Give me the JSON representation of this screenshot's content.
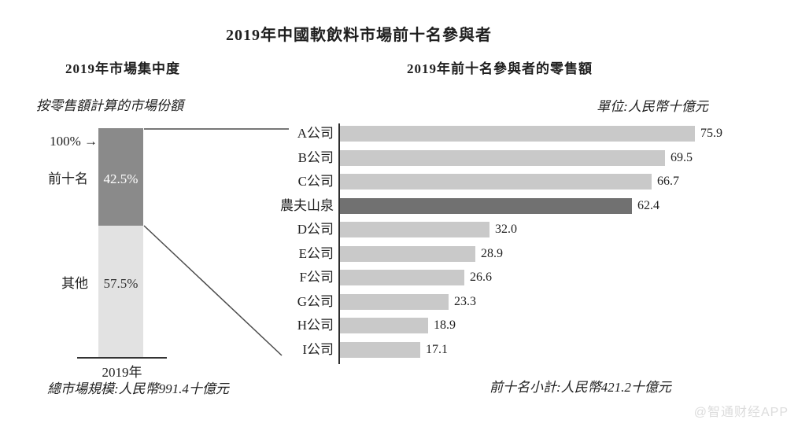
{
  "title": "2019年中國軟飲料市場前十名參與者",
  "watermark": "@智通财经APP",
  "left_panel": {
    "subtitle": "2019年市場集中度",
    "note": "按零售額計算的市場份額",
    "pointer_label": "100%",
    "arrow_glyph": "→",
    "segments": [
      {
        "label": "前十名",
        "value_label": "42.5%",
        "value": 42.5
      },
      {
        "label": "其他",
        "value_label": "57.5%",
        "value": 57.5
      }
    ],
    "axis_label": "2019年",
    "footnote": "總市場規模:人民幣991.4十億元"
  },
  "right_panel": {
    "subtitle": "2019年前十名參與者的零售額",
    "unit_note": "單位:人民幣十億元",
    "footnote": "前十名小計:人民幣421.2十億元"
  },
  "colors": {
    "bar_light": "#c9c9c9",
    "bar_highlight": "#717171",
    "segment_top": "#8a8a8a",
    "segment_bottom": "#e2e2e2",
    "segment_top_text": "#ffffff",
    "segment_bottom_text": "#333333",
    "connector_line": "#4a4a4a"
  },
  "chart_data": [
    {
      "type": "bar",
      "subtype": "stacked-column",
      "title": "2019年市場集中度",
      "subtitle": "按零售額計算的市場份額",
      "categories": [
        "2019年"
      ],
      "series": [
        {
          "name": "前十名",
          "values": [
            42.5
          ]
        },
        {
          "name": "其他",
          "values": [
            57.5
          ]
        }
      ],
      "unit": "%",
      "ylim": [
        0,
        100
      ],
      "annotations": [
        "100%",
        "總市場規模:人民幣991.4十億元"
      ],
      "legend_position": "none",
      "grid": false
    },
    {
      "type": "bar",
      "orientation": "horizontal",
      "title": "2019年前十名參與者的零售額",
      "unit": "人民幣十億元",
      "categories": [
        "A公司",
        "B公司",
        "C公司",
        "農夫山泉",
        "D公司",
        "E公司",
        "F公司",
        "G公司",
        "H公司",
        "I公司"
      ],
      "values": [
        75.9,
        69.5,
        66.7,
        62.4,
        32.0,
        28.9,
        26.6,
        23.3,
        18.9,
        17.1
      ],
      "value_labels": [
        "75.9",
        "69.5",
        "66.7",
        "62.4",
        "32.0",
        "28.9",
        "26.6",
        "23.3",
        "18.9",
        "17.1"
      ],
      "highlight_index": 3,
      "highlight_category": "農夫山泉",
      "xlim": [
        0,
        80
      ],
      "annotations": [
        "單位:人民幣十億元",
        "前十名小計:人民幣421.2十億元"
      ],
      "legend_position": "none",
      "grid": false
    }
  ]
}
